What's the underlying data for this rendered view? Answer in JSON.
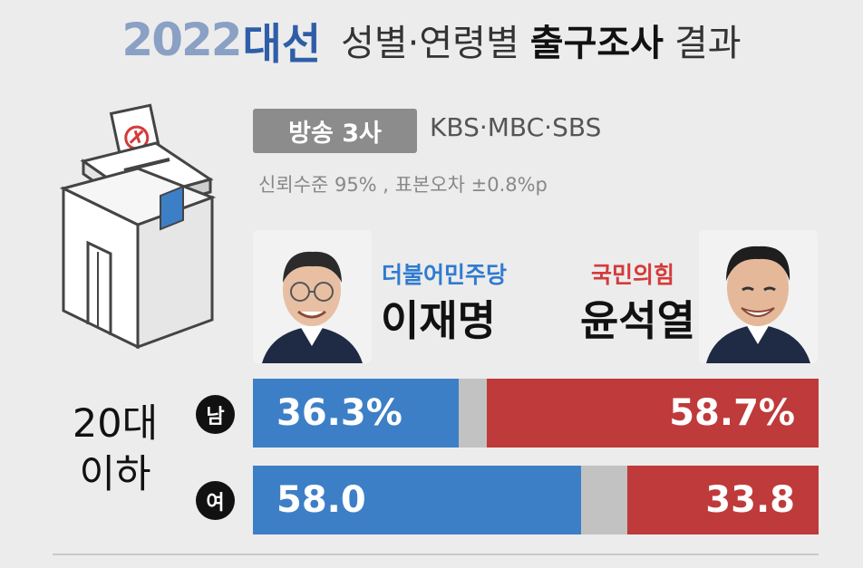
{
  "title": {
    "year": "2022",
    "election": "대선",
    "part1": "성별·연령별",
    "part2": "출구조사",
    "part3": "결과"
  },
  "source": {
    "badge": "방송 3사",
    "broadcasters": "KBS·MBC·SBS",
    "confidence": "신뢰수준 95% , 표본오차 ±0.8%p"
  },
  "candidates": [
    {
      "party": "더불어민주당",
      "name": "이재명",
      "color": "#3d7fc7"
    },
    {
      "party": "국민의힘",
      "name": "윤석열",
      "color": "#bf3a3a"
    }
  ],
  "age_group": {
    "line1": "20대",
    "line2": "이하"
  },
  "chart_data": {
    "type": "bar",
    "stacked": true,
    "orientation": "horizontal",
    "categories": [
      "남",
      "여"
    ],
    "series": [
      {
        "name": "이재명",
        "values": [
          36.3,
          58.0
        ],
        "labels": [
          "36.3%",
          "58.0"
        ]
      },
      {
        "name": "윤석열",
        "values": [
          58.7,
          33.8
        ],
        "labels": [
          "58.7%",
          "33.8"
        ]
      }
    ],
    "xlim": [
      0,
      100
    ]
  }
}
